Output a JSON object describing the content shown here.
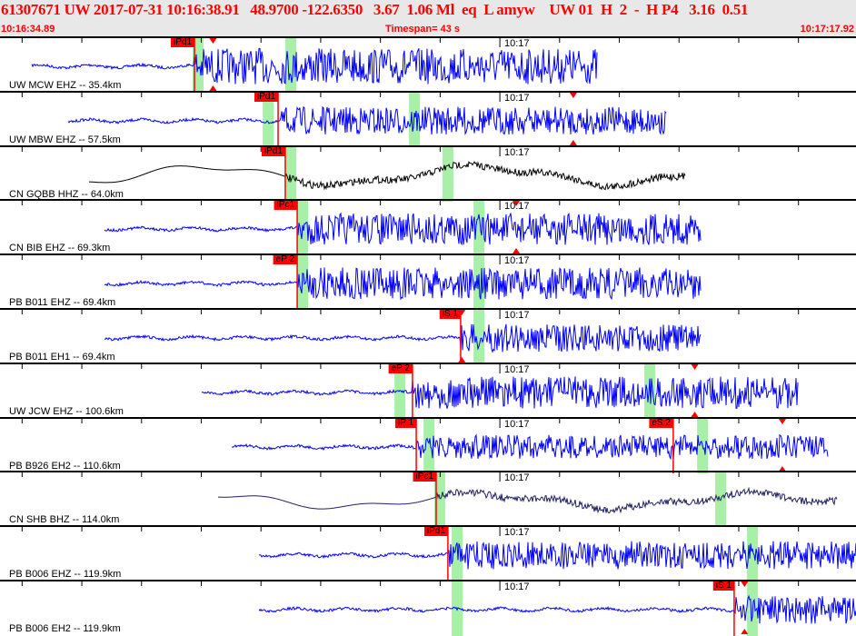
{
  "header": {
    "title": "61307671 UW 2017-07-31 10:16:38.91   48.9700 -122.6350   3.67  1.06 Ml  eq  L amyw    UW 01  H  2  -  H P4   3.16  0.51",
    "start_time": "10:16:34.89",
    "timespan": "Timespan=  43 s",
    "end_time": "10:17:17.92"
  },
  "timespan_s": 43,
  "minute_mark": {
    "label": "10:17",
    "offset_s": 25.11
  },
  "colors": {
    "header_text": "#ff0000",
    "pick": "#ff0000",
    "band": "#a8f0a8",
    "trace_blue": "#0000ff",
    "trace_black": "#000000",
    "trace_navy": "#202060"
  },
  "panels": [
    {
      "station": "UW MCW EHZ -- 35.4km",
      "color": "#0000ff",
      "lp": false,
      "amp": 0.9,
      "start": 1.6,
      "end": 30.0,
      "picks": [
        {
          "label": "iPd1",
          "t": 9.77
        }
      ],
      "bands": [
        9.95,
        14.61
      ],
      "tri": [
        10.7
      ]
    },
    {
      "station": "UW MBW EHZ -- 57.5km",
      "color": "#0000ff",
      "lp": false,
      "amp": 0.7,
      "start": 3.42,
      "end": 33.46,
      "picks": [
        {
          "label": "iPd1",
          "t": 13.97
        }
      ],
      "bands": [
        13.47,
        20.82
      ],
      "tri": [
        28.8
      ]
    },
    {
      "station": "CN GQBB HHZ -- 64.0km",
      "color": "#000000",
      "lp": true,
      "amp": 0.8,
      "start": 4.47,
      "end": 34.46,
      "picks": [
        {
          "label": "iPd1",
          "t": 14.33
        }
      ],
      "bands": [
        14.61,
        22.5
      ],
      "tri": []
    },
    {
      "station": "CN BIB EHZ -- 69.3km",
      "color": "#0000ff",
      "lp": false,
      "amp": 0.8,
      "start": 5.25,
      "end": 35.24,
      "picks": [
        {
          "label": "iPc1",
          "t": 14.93
        }
      ],
      "bands": [
        15.2,
        24.06
      ],
      "tri": [
        25.93
      ]
    },
    {
      "station": "PB B011 EHZ -- 69.4km",
      "color": "#0000ff",
      "lp": false,
      "amp": 0.8,
      "start": 5.25,
      "end": 35.24,
      "picks": [
        {
          "label": "eP 2",
          "t": 14.93
        }
      ],
      "bands": [
        15.2,
        24.06
      ],
      "tri": []
    },
    {
      "station": "PB B011 EH1 -- 69.4km",
      "color": "#0000ff",
      "lp": false,
      "amp": 0.7,
      "start": 5.25,
      "end": 35.24,
      "picks": [
        {
          "label": "iS 1",
          "t": 23.14
        }
      ],
      "bands": [
        24.06
      ],
      "tri": [
        23.2
      ]
    },
    {
      "station": "UW JCW EHZ -- 100.6km",
      "color": "#0000ff",
      "lp": false,
      "amp": 0.8,
      "start": 10.13,
      "end": 40.08,
      "picks": [
        {
          "label": "eP 2",
          "t": 20.72
        }
      ],
      "bands": [
        20.09,
        32.64
      ],
      "tri": [
        34.9
      ]
    },
    {
      "station": "PB B926 EH2 -- 110.6km",
      "color": "#0000ff",
      "lp": false,
      "amp": 0.6,
      "start": 11.64,
      "end": 41.63,
      "picks": [
        {
          "label": "iP 1",
          "t": 20.91
        },
        {
          "label": "eS 2",
          "t": 33.82
        }
      ],
      "bands": [
        21.55,
        35.29
      ],
      "tri": [
        39.3
      ]
    },
    {
      "station": "CN SHB BHZ -- 114.0km",
      "color": "#202060",
      "lp": true,
      "amp": 0.6,
      "start": 10.96,
      "end": 42.09,
      "picks": [
        {
          "label": "iPc1",
          "t": 21.91
        }
      ],
      "bands": [
        22.09,
        36.2
      ],
      "tri": []
    },
    {
      "station": "PB B006 EHZ -- 119.9km",
      "color": "#0000ff",
      "lp": false,
      "amp": 0.7,
      "start": 13.0,
      "end": 43.0,
      "picks": [
        {
          "label": "iPd1",
          "t": 22.5
        }
      ],
      "bands": [
        22.96,
        37.8
      ],
      "tri": []
    },
    {
      "station": "PB B006 EH2 -- 119.9km",
      "color": "#0000ff",
      "lp": false,
      "amp": 0.7,
      "start": 13.0,
      "end": 43.0,
      "picks": [
        {
          "label": "iS 1",
          "t": 36.88
        }
      ],
      "bands": [
        22.96,
        37.8
      ],
      "tri": [
        37.4
      ]
    }
  ]
}
